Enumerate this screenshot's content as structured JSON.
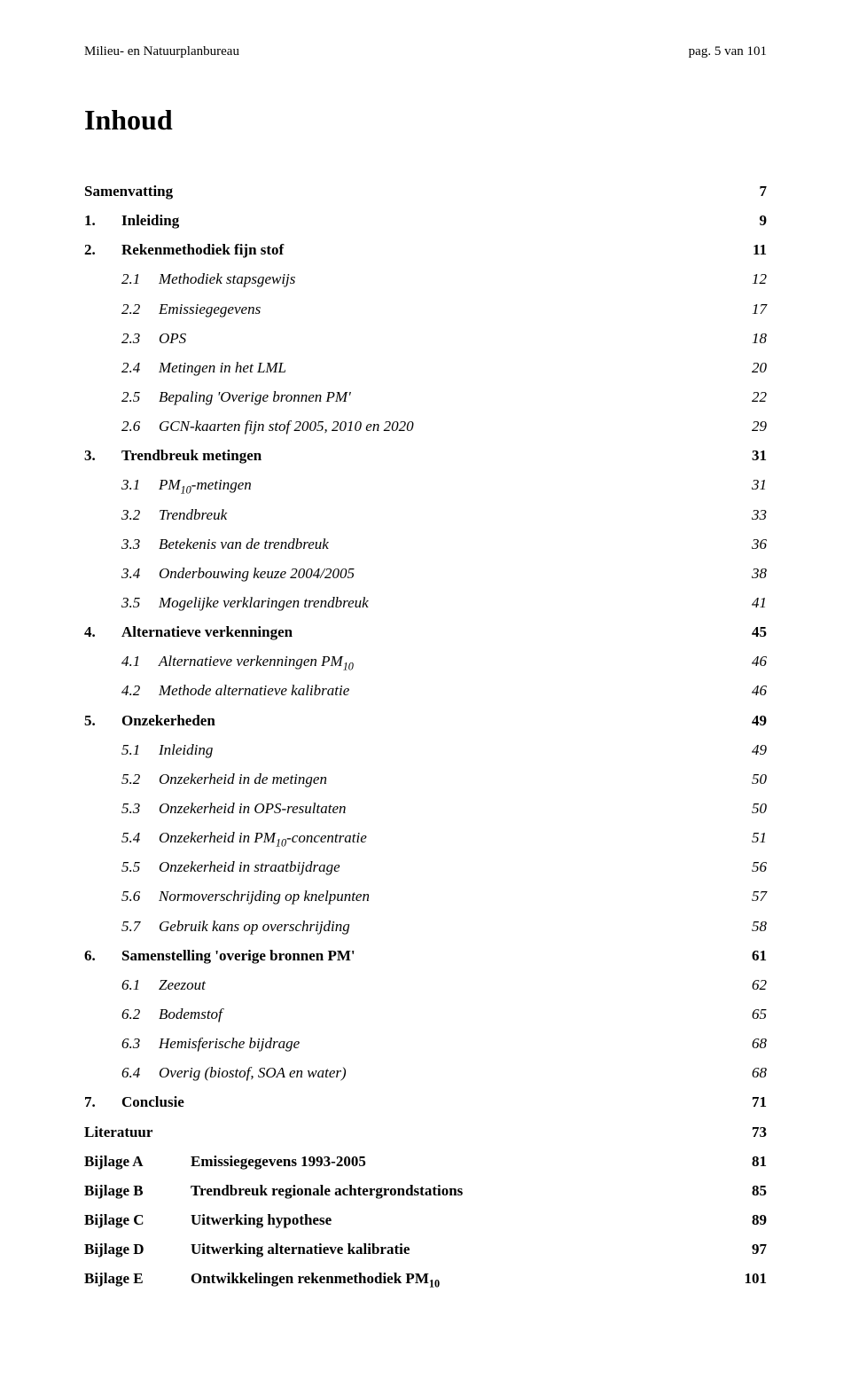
{
  "header": {
    "left": "Milieu- en Natuurplanbureau",
    "right": "pag. 5 van 101"
  },
  "title": "Inhoud",
  "toc": [
    {
      "num": "",
      "text": "Samenvatting",
      "page": "7",
      "level": 0,
      "bold": true,
      "italic": false,
      "numbered": false
    },
    {
      "num": "1.",
      "text": "Inleiding",
      "page": "9",
      "level": 1,
      "bold": true,
      "italic": false,
      "numbered": true
    },
    {
      "num": "2.",
      "text": "Rekenmethodiek fijn stof",
      "page": "11",
      "level": 1,
      "bold": true,
      "italic": false,
      "numbered": true
    },
    {
      "num": "2.1",
      "text": "Methodiek stapsgewijs",
      "page": "12",
      "level": 2,
      "bold": false,
      "italic": true,
      "numbered": true
    },
    {
      "num": "2.2",
      "text": "Emissiegegevens",
      "page": "17",
      "level": 2,
      "bold": false,
      "italic": true,
      "numbered": true
    },
    {
      "num": "2.3",
      "text": "OPS",
      "page": "18",
      "level": 2,
      "bold": false,
      "italic": true,
      "numbered": true
    },
    {
      "num": "2.4",
      "text": "Metingen in het LML",
      "page": "20",
      "level": 2,
      "bold": false,
      "italic": true,
      "numbered": true
    },
    {
      "num": "2.5",
      "text": "Bepaling 'Overige bronnen PM'",
      "page": "22",
      "level": 2,
      "bold": false,
      "italic": true,
      "numbered": true
    },
    {
      "num": "2.6",
      "text": "GCN-kaarten fijn stof 2005, 2010 en 2020",
      "page": "29",
      "level": 2,
      "bold": false,
      "italic": true,
      "numbered": true
    },
    {
      "num": "3.",
      "text": "Trendbreuk metingen",
      "page": "31",
      "level": 1,
      "bold": true,
      "italic": false,
      "numbered": true
    },
    {
      "num": "3.1",
      "text": "PM<sub>10</sub>-metingen",
      "page": "31",
      "level": 2,
      "bold": false,
      "italic": true,
      "numbered": true
    },
    {
      "num": "3.2",
      "text": "Trendbreuk",
      "page": "33",
      "level": 2,
      "bold": false,
      "italic": true,
      "numbered": true
    },
    {
      "num": "3.3",
      "text": "Betekenis van de trendbreuk",
      "page": "36",
      "level": 2,
      "bold": false,
      "italic": true,
      "numbered": true
    },
    {
      "num": "3.4",
      "text": "Onderbouwing keuze 2004/2005",
      "page": "38",
      "level": 2,
      "bold": false,
      "italic": true,
      "numbered": true
    },
    {
      "num": "3.5",
      "text": "Mogelijke verklaringen trendbreuk",
      "page": "41",
      "level": 2,
      "bold": false,
      "italic": true,
      "numbered": true
    },
    {
      "num": "4.",
      "text": "Alternatieve verkenningen",
      "page": "45",
      "level": 1,
      "bold": true,
      "italic": false,
      "numbered": true
    },
    {
      "num": "4.1",
      "text": "Alternatieve verkenningen PM<sub>10</sub>",
      "page": "46",
      "level": 2,
      "bold": false,
      "italic": true,
      "numbered": true
    },
    {
      "num": "4.2",
      "text": "Methode alternatieve kalibratie",
      "page": "46",
      "level": 2,
      "bold": false,
      "italic": true,
      "numbered": true
    },
    {
      "num": "5.",
      "text": "Onzekerheden",
      "page": "49",
      "level": 1,
      "bold": true,
      "italic": false,
      "numbered": true
    },
    {
      "num": "5.1",
      "text": "Inleiding",
      "page": "49",
      "level": 2,
      "bold": false,
      "italic": true,
      "numbered": true
    },
    {
      "num": "5.2",
      "text": "Onzekerheid in de metingen",
      "page": "50",
      "level": 2,
      "bold": false,
      "italic": true,
      "numbered": true
    },
    {
      "num": "5.3",
      "text": "Onzekerheid in OPS-resultaten",
      "page": "50",
      "level": 2,
      "bold": false,
      "italic": true,
      "numbered": true
    },
    {
      "num": "5.4",
      "text": "Onzekerheid in PM<sub>10</sub>-concentratie",
      "page": "51",
      "level": 2,
      "bold": false,
      "italic": true,
      "numbered": true
    },
    {
      "num": "5.5",
      "text": "Onzekerheid in straatbijdrage",
      "page": "56",
      "level": 2,
      "bold": false,
      "italic": true,
      "numbered": true
    },
    {
      "num": "5.6",
      "text": "Normoverschrijding op knelpunten",
      "page": "57",
      "level": 2,
      "bold": false,
      "italic": true,
      "numbered": true
    },
    {
      "num": "5.7",
      "text": "Gebruik kans op overschrijding",
      "page": "58",
      "level": 2,
      "bold": false,
      "italic": true,
      "numbered": true
    },
    {
      "num": "6.",
      "text": "Samenstelling 'overige bronnen PM'",
      "page": "61",
      "level": 1,
      "bold": true,
      "italic": false,
      "numbered": true
    },
    {
      "num": "6.1",
      "text": "Zeezout",
      "page": "62",
      "level": 2,
      "bold": false,
      "italic": true,
      "numbered": true
    },
    {
      "num": "6.2",
      "text": "Bodemstof",
      "page": "65",
      "level": 2,
      "bold": false,
      "italic": true,
      "numbered": true
    },
    {
      "num": "6.3",
      "text": "Hemisferische bijdrage",
      "page": "68",
      "level": 2,
      "bold": false,
      "italic": true,
      "numbered": true
    },
    {
      "num": "6.4",
      "text": "Overig (biostof, SOA en water)",
      "page": "68",
      "level": 2,
      "bold": false,
      "italic": true,
      "numbered": true
    },
    {
      "num": "7.",
      "text": "Conclusie",
      "page": "71",
      "level": 1,
      "bold": true,
      "italic": false,
      "numbered": true
    },
    {
      "num": "",
      "text": "Literatuur",
      "page": "73",
      "level": 0,
      "bold": true,
      "italic": false,
      "numbered": false
    },
    {
      "num": "Bijlage A",
      "text": "Emissiegegevens 1993-2005",
      "page": "81",
      "level": 0,
      "bold": true,
      "italic": false,
      "numbered": false,
      "bijlage": true
    },
    {
      "num": "Bijlage B",
      "text": "Trendbreuk regionale achtergrondstations",
      "page": "85",
      "level": 0,
      "bold": true,
      "italic": false,
      "numbered": false,
      "bijlage": true
    },
    {
      "num": "Bijlage C",
      "text": "Uitwerking hypothese",
      "page": "89",
      "level": 0,
      "bold": true,
      "italic": false,
      "numbered": false,
      "bijlage": true
    },
    {
      "num": "Bijlage D",
      "text": "Uitwerking alternatieve kalibratie",
      "page": "97",
      "level": 0,
      "bold": true,
      "italic": false,
      "numbered": false,
      "bijlage": true
    },
    {
      "num": "Bijlage E",
      "text": "Ontwikkelingen rekenmethodiek PM<sub>10</sub>",
      "page": "101",
      "level": 0,
      "bold": true,
      "italic": false,
      "numbered": false,
      "bijlage": true
    }
  ]
}
